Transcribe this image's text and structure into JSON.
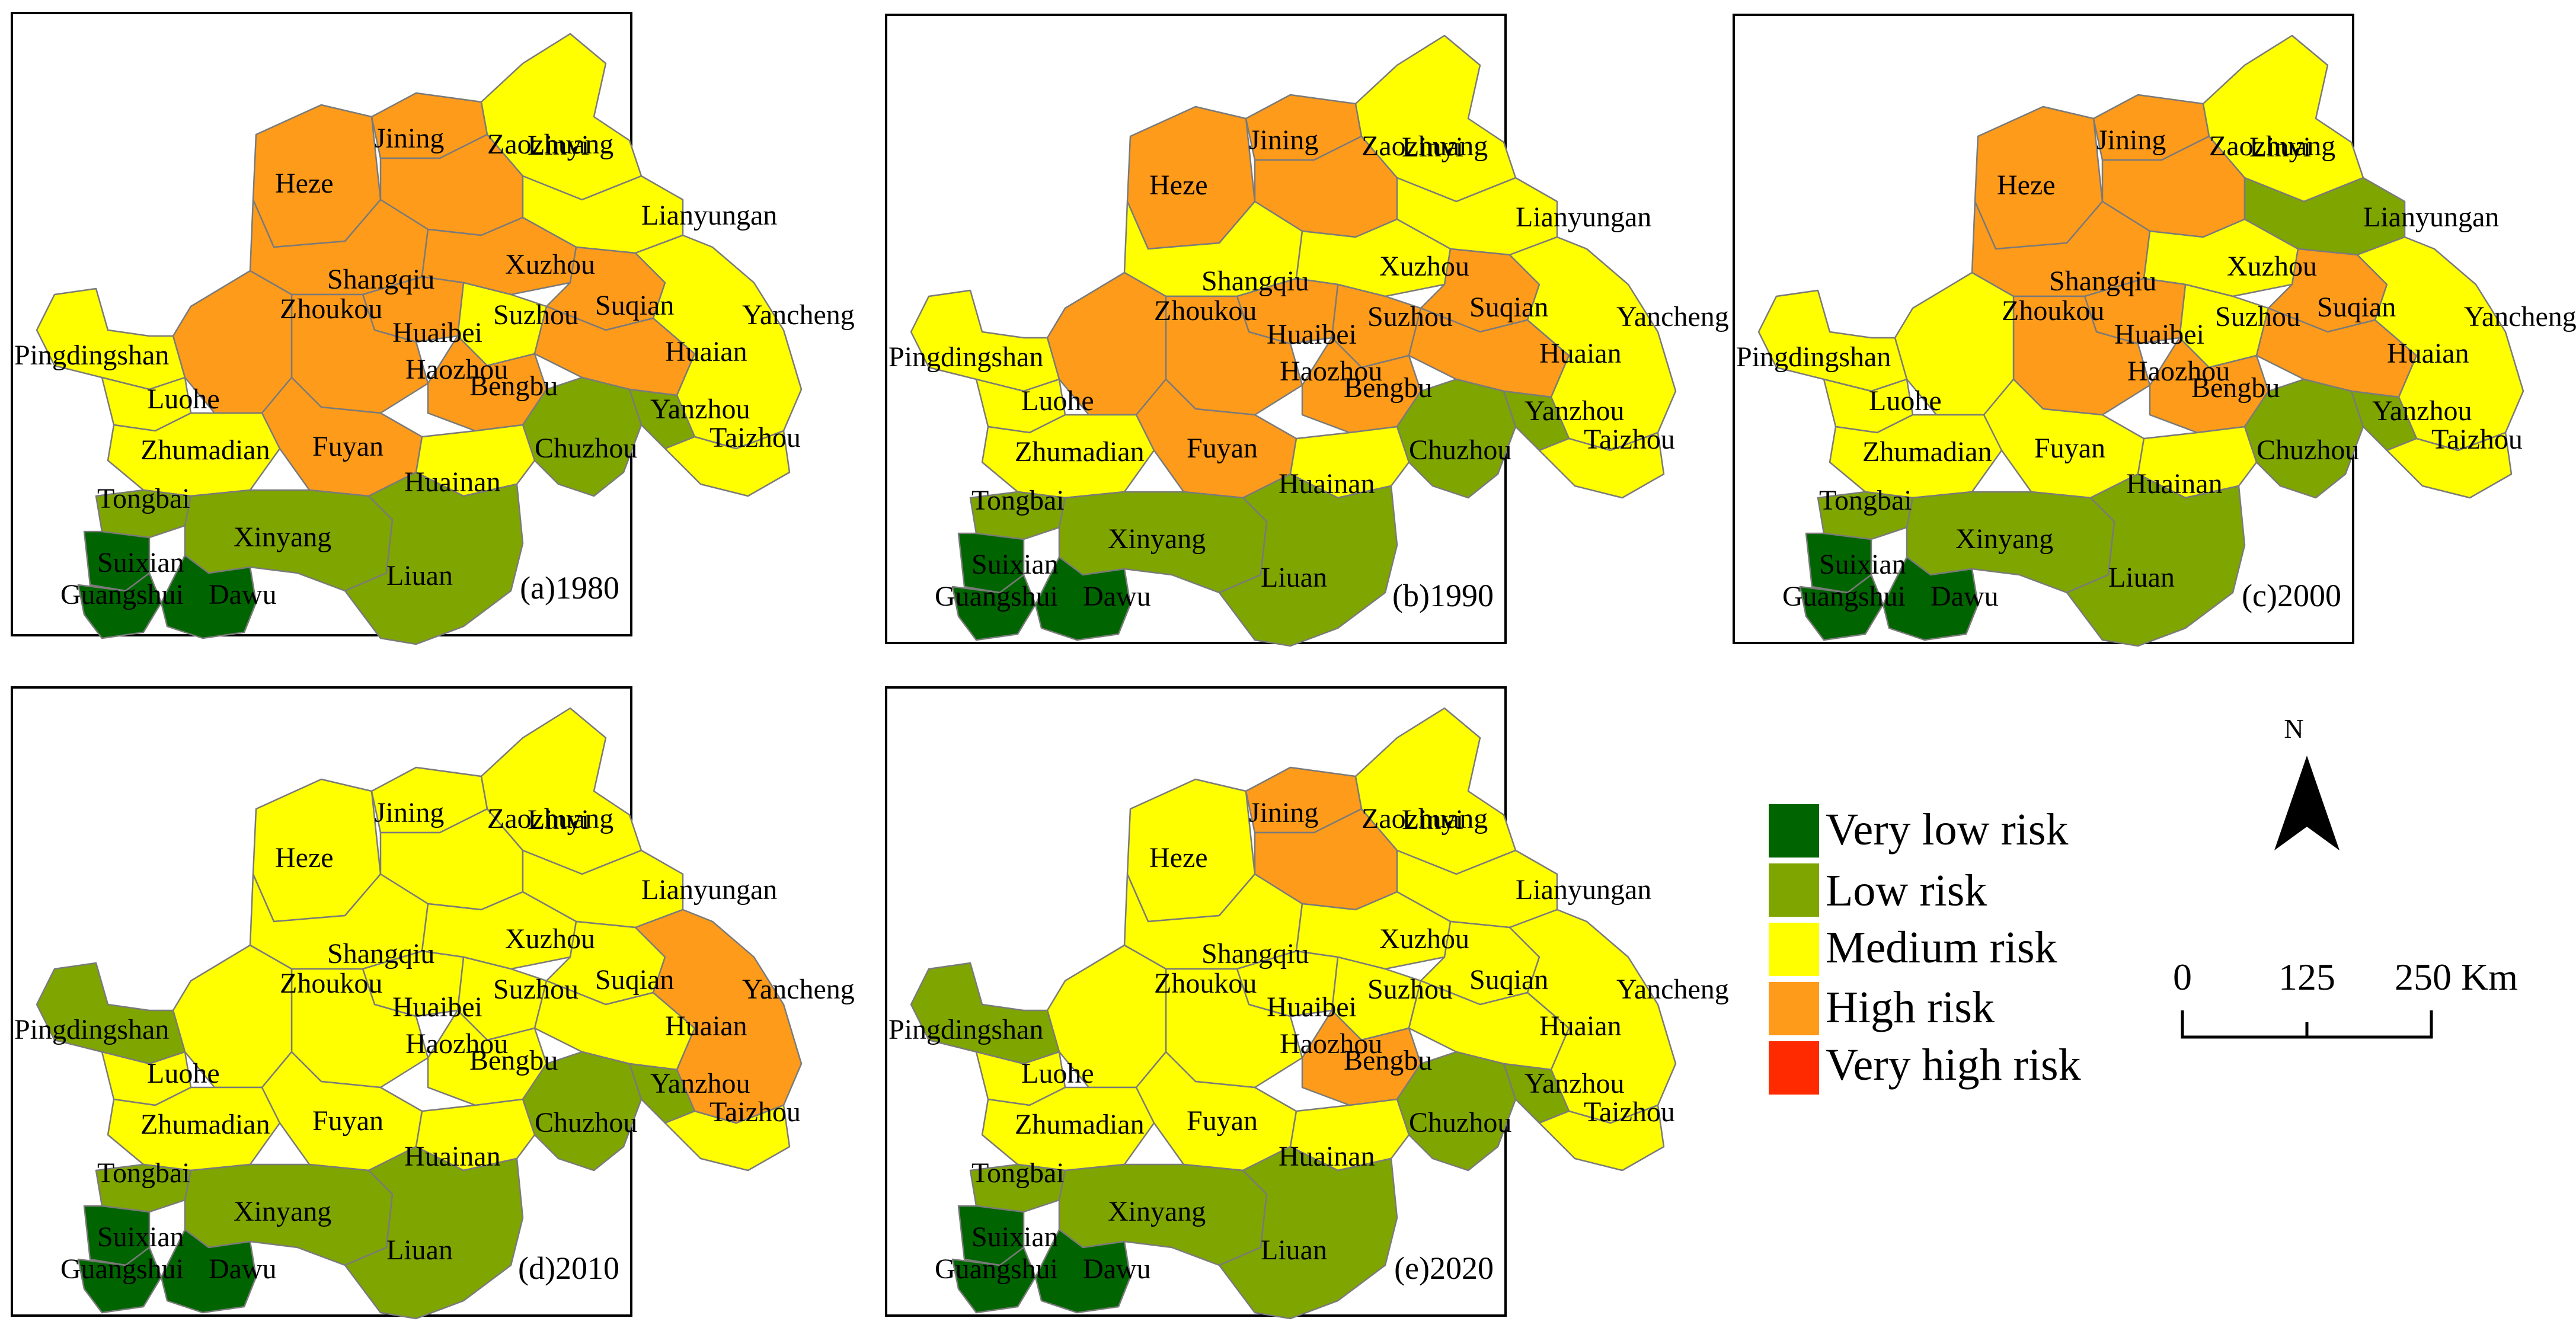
{
  "panels": [
    {
      "title": "(a)1980",
      "levels": {
        "Heze": "high",
        "Jining": "high",
        "Linyi": "medium",
        "Zaozhuang": "high",
        "Lianyungan": "medium",
        "Shangqiu": "high",
        "Xuzhou": "high",
        "Suzhou": "medium",
        "Huaibei": "high",
        "Haozhou": "high",
        "Zhoukou": "high",
        "Suqian": "high",
        "Huaian": "high",
        "Yancheng": "medium",
        "Pingdingshan": "medium",
        "Luohe": "medium",
        "Zhumadian": "medium",
        "Fuyan": "high",
        "Bengbu": "high",
        "Chuzhou": "low",
        "Yanzhou": "low",
        "Taizhou": "medium",
        "Huainan": "medium",
        "Tongbai": "low",
        "Xinyang": "low",
        "Suixian": "verylow",
        "Guangshui": "verylow",
        "Dawu": "verylow",
        "Liuan": "low"
      }
    },
    {
      "title": "(b)1990",
      "levels": {
        "Heze": "high",
        "Jining": "high",
        "Linyi": "medium",
        "Zaozhuang": "high",
        "Lianyungan": "medium",
        "Shangqiu": "medium",
        "Xuzhou": "medium",
        "Suzhou": "high",
        "Huaibei": "high",
        "Haozhou": "high",
        "Zhoukou": "high",
        "Suqian": "high",
        "Huaian": "high",
        "Yancheng": "medium",
        "Pingdingshan": "medium",
        "Luohe": "medium",
        "Zhumadian": "medium",
        "Fuyan": "high",
        "Bengbu": "high",
        "Chuzhou": "low",
        "Yanzhou": "low",
        "Taizhou": "medium",
        "Huainan": "medium",
        "Tongbai": "low",
        "Xinyang": "low",
        "Suixian": "verylow",
        "Guangshui": "verylow",
        "Dawu": "verylow",
        "Liuan": "low"
      }
    },
    {
      "title": "(c)2000",
      "levels": {
        "Heze": "high",
        "Jining": "high",
        "Linyi": "medium",
        "Zaozhuang": "high",
        "Lianyungan": "low",
        "Shangqiu": "high",
        "Xuzhou": "medium",
        "Suzhou": "medium",
        "Huaibei": "high",
        "Haozhou": "high",
        "Zhoukou": "medium",
        "Suqian": "high",
        "Huaian": "high",
        "Yancheng": "medium",
        "Pingdingshan": "medium",
        "Luohe": "medium",
        "Zhumadian": "medium",
        "Fuyan": "medium",
        "Bengbu": "high",
        "Chuzhou": "low",
        "Yanzhou": "low",
        "Taizhou": "medium",
        "Huainan": "medium",
        "Tongbai": "low",
        "Xinyang": "low",
        "Suixian": "verylow",
        "Guangshui": "verylow",
        "Dawu": "verylow",
        "Liuan": "low"
      }
    },
    {
      "title": "(d)2010",
      "levels": {
        "Heze": "medium",
        "Jining": "medium",
        "Linyi": "medium",
        "Zaozhuang": "medium",
        "Lianyungan": "medium",
        "Shangqiu": "medium",
        "Xuzhou": "medium",
        "Suzhou": "medium",
        "Huaibei": "medium",
        "Haozhou": "medium",
        "Zhoukou": "medium",
        "Suqian": "medium",
        "Huaian": "medium",
        "Yancheng": "high",
        "Pingdingshan": "low",
        "Luohe": "medium",
        "Zhumadian": "medium",
        "Fuyan": "medium",
        "Bengbu": "medium",
        "Chuzhou": "low",
        "Yanzhou": "low",
        "Taizhou": "medium",
        "Huainan": "medium",
        "Tongbai": "low",
        "Xinyang": "low",
        "Suixian": "verylow",
        "Guangshui": "verylow",
        "Dawu": "verylow",
        "Liuan": "low"
      }
    },
    {
      "title": "(e)2020",
      "levels": {
        "Heze": "medium",
        "Jining": "high",
        "Linyi": "medium",
        "Zaozhuang": "high",
        "Lianyungan": "medium",
        "Shangqiu": "medium",
        "Xuzhou": "medium",
        "Suzhou": "medium",
        "Huaibei": "medium",
        "Haozhou": "medium",
        "Zhoukou": "medium",
        "Suqian": "medium",
        "Huaian": "medium",
        "Yancheng": "medium",
        "Pingdingshan": "low",
        "Luohe": "medium",
        "Zhumadian": "medium",
        "Fuyan": "medium",
        "Bengbu": "high",
        "Chuzhou": "low",
        "Yanzhou": "low",
        "Taizhou": "medium",
        "Huainan": "medium",
        "Tongbai": "low",
        "Xinyang": "low",
        "Suixian": "verylow",
        "Guangshui": "verylow",
        "Dawu": "verylow",
        "Liuan": "low"
      }
    }
  ],
  "legend": [
    {
      "key": "verylow",
      "label": "Very low risk",
      "color": "#006400"
    },
    {
      "key": "low",
      "label": "Low risk",
      "color": "#7fa500"
    },
    {
      "key": "medium",
      "label": "Medium risk",
      "color": "#ffff00"
    },
    {
      "key": "high",
      "label": "High risk",
      "color": "#ff9b1a"
    },
    {
      "key": "veryhigh",
      "label": "Very high risk",
      "color": "#ff2a00"
    }
  ],
  "north_label": "N",
  "scale": {
    "ticks": [
      "0",
      "125",
      "250 Km"
    ]
  }
}
